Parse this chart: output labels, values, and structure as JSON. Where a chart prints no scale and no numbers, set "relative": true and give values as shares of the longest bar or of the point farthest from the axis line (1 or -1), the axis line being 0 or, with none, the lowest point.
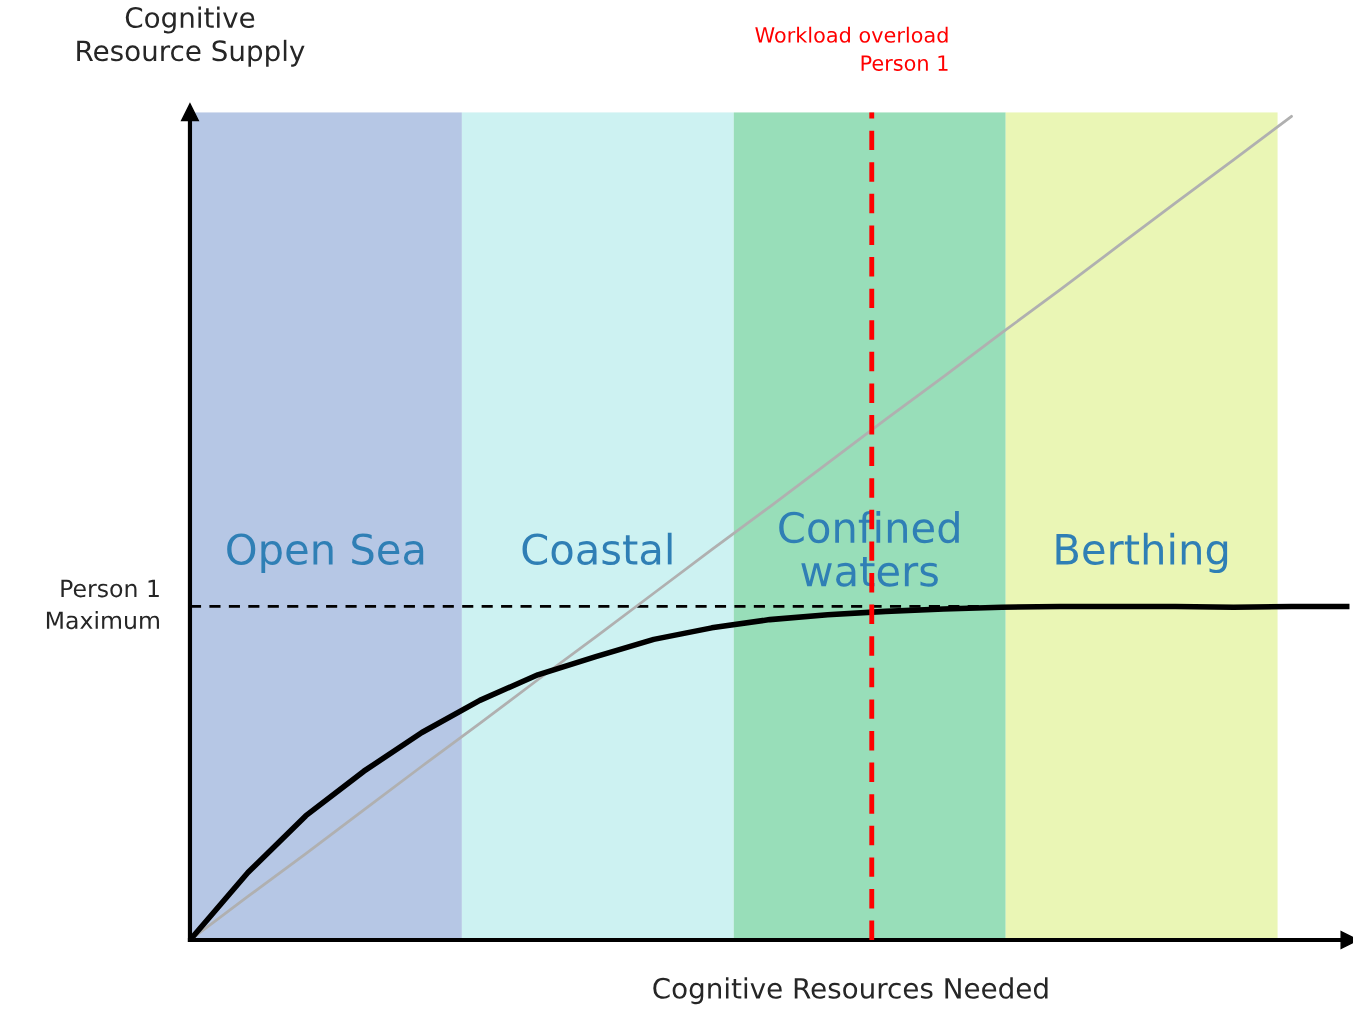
{
  "chart_data": {
    "type": "line",
    "relative": true,
    "xlabel": "Cognitive Resources Needed",
    "ylabel": "Cognitive\nResource Supply",
    "legend": false,
    "marker": "none",
    "categories": [
      null,
      null,
      null,
      null,
      null,
      null,
      null,
      null,
      null,
      null,
      null,
      null,
      null,
      null,
      null,
      null,
      null,
      null,
      null,
      null,
      null
    ],
    "series": [
      {
        "color": "#b0b0b0",
        "line_style": "solid",
        "values": [
          0,
          0.053,
          0.105,
          0.158,
          0.211,
          0.263,
          0.316,
          0.368,
          0.421,
          0.474,
          0.526,
          0.579,
          0.632,
          0.684,
          0.737,
          0.789,
          0.842,
          0.895,
          0.947,
          1,
          null
        ]
      },
      {
        "color": "#000000",
        "line_style": "solid",
        "values": [
          0,
          0.082,
          0.151,
          0.205,
          0.252,
          0.291,
          0.322,
          0.344,
          0.365,
          0.379,
          0.389,
          0.395,
          0.399,
          0.402,
          0.404,
          0.405,
          0.405,
          0.405,
          0.404,
          0.405,
          0.405
        ]
      }
    ],
    "annotations": [
      "Open Sea",
      "Coastal",
      "Confined\nwaters",
      "Berthing"
    ],
    "ref_lines": [
      {
        "axis": "y",
        "value": 0.405,
        "label": "Person 1\nMaximum",
        "color": "#000000",
        "line_style": "dashed"
      },
      {
        "axis": "x",
        "label": "Workload overload\nPerson 1",
        "color": "#ff0000",
        "line_style": "dashed"
      }
    ]
  }
}
